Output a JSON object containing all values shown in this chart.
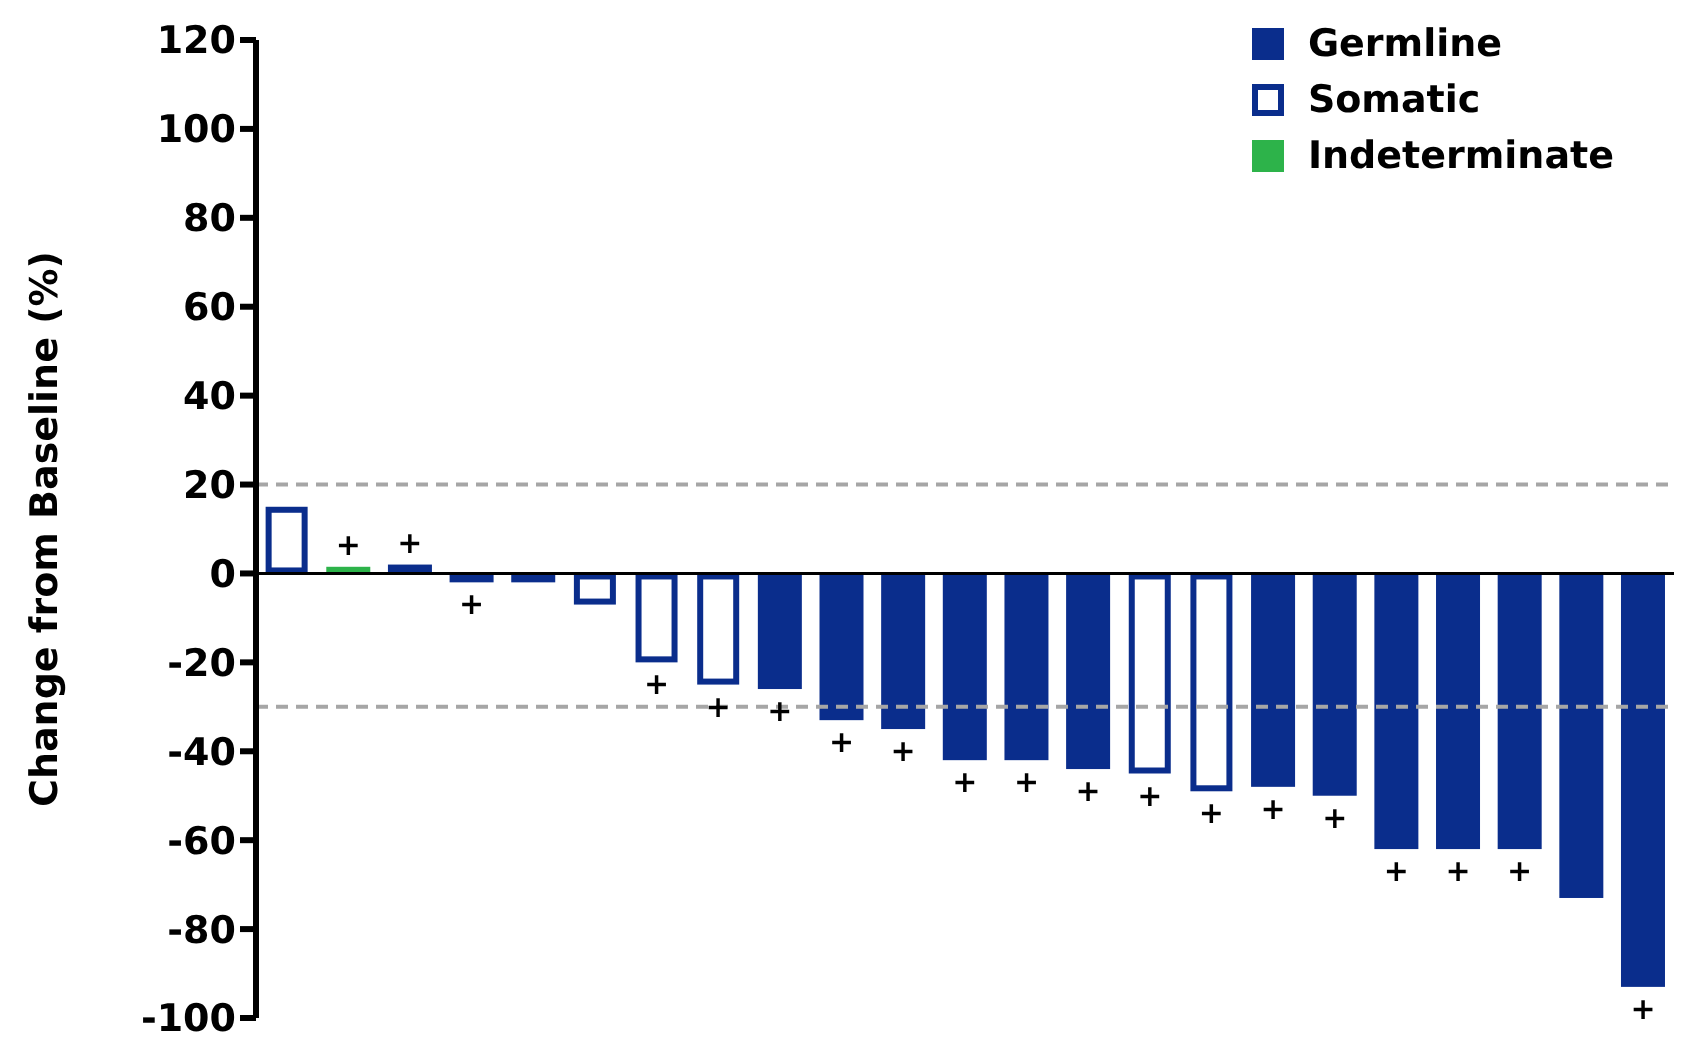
{
  "chart_data": {
    "type": "bar",
    "ylabel": "Change from Baseline (%)",
    "categories": [
      null,
      null,
      null,
      null,
      null,
      null,
      null,
      null,
      null,
      null,
      null,
      null,
      null,
      null,
      null,
      null,
      null,
      null,
      null,
      null,
      null,
      null,
      null
    ],
    "series": [
      {
        "name": "Germline",
        "color": "#0a2d8c",
        "values": [
          null,
          null,
          2,
          -2,
          -2,
          null,
          null,
          null,
          -26,
          -33,
          -35,
          -42,
          -42,
          -44,
          null,
          null,
          -48,
          -50,
          -62,
          -62,
          -62,
          -73,
          -93
        ]
      },
      {
        "name": "Somatic",
        "color": "#0a2d8c",
        "values": [
          15,
          null,
          null,
          null,
          null,
          -7,
          -20,
          -25,
          null,
          null,
          null,
          null,
          null,
          null,
          -45,
          -49,
          null,
          null,
          null,
          null,
          null,
          null,
          null
        ]
      },
      {
        "name": "Indeterminate",
        "color": "#2db34a",
        "values": [
          null,
          1.5,
          null,
          null,
          null,
          null,
          null,
          null,
          null,
          null,
          null,
          null,
          null,
          null,
          null,
          null,
          null,
          null,
          null,
          null,
          null,
          null,
          null
        ]
      }
    ],
    "value_labels": [
      null,
      "+",
      "+",
      "+",
      null,
      null,
      "+",
      "+",
      "+",
      "+",
      "+",
      "+",
      "+",
      "+",
      "+",
      "+",
      "+",
      "+",
      "+",
      "+",
      "+",
      null,
      "+"
    ],
    "ylim": [
      -100,
      120
    ],
    "yticks": [
      -100,
      -80,
      -60,
      -40,
      -20,
      0,
      20,
      40,
      60,
      80,
      100,
      120
    ],
    "ref_lines": [
      {
        "axis": "y",
        "value": 20,
        "color": "#a6a6a6",
        "line_style": "dashed"
      },
      {
        "axis": "y",
        "value": -30,
        "color": "#a6a6a6",
        "line_style": "dashed"
      }
    ],
    "tick_labels": "y",
    "legend": "top right"
  }
}
